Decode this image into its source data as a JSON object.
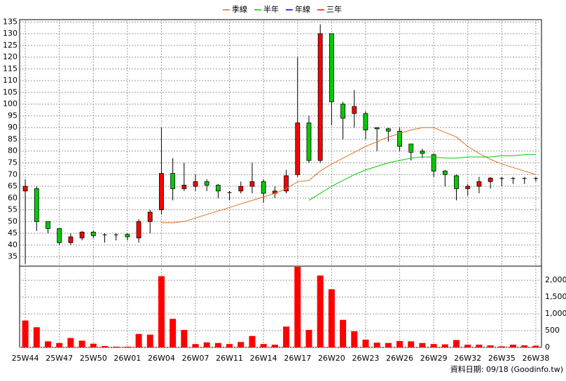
{
  "chart_data": [
    {
      "type": "candlestick",
      "categories": [
        "25W44",
        null,
        null,
        "25W47",
        null,
        null,
        "25W50",
        null,
        null,
        "26W01",
        null,
        null,
        "26W04",
        null,
        null,
        "26W07",
        null,
        null,
        "26W11",
        null,
        null,
        "26W14",
        null,
        null,
        "26W17",
        null,
        null,
        "26W20",
        null,
        null,
        "26W23",
        null,
        null,
        "26W26",
        null,
        null,
        "26W29",
        null,
        null,
        "26W32",
        null,
        null,
        "26W35",
        null,
        null,
        "26W38"
      ],
      "open": [
        63,
        64,
        50,
        47,
        41,
        43,
        45.5,
        44.5,
        44.5,
        44.5,
        43,
        50,
        55,
        70.5,
        64,
        65,
        67,
        65.5,
        62.5,
        63,
        65,
        67,
        62,
        63,
        70,
        92,
        76,
        130,
        100,
        96,
        96,
        90,
        89.5,
        88.5,
        83,
        80,
        78.5,
        71.5,
        69.5,
        64,
        65,
        67,
        68.5,
        68.5,
        68.5,
        68.5
      ],
      "high": [
        68,
        65,
        50,
        47,
        45,
        46,
        46,
        45,
        45,
        45,
        51,
        55,
        90,
        77,
        75,
        70,
        68,
        66,
        63,
        67,
        75,
        68,
        65,
        72,
        120,
        95,
        134,
        130,
        101,
        106,
        97,
        90,
        90,
        90,
        83,
        81,
        79,
        72,
        70,
        66,
        69,
        69,
        69,
        69,
        69,
        69
      ],
      "low": [
        32,
        46,
        45,
        40,
        40,
        42,
        43,
        41,
        42,
        42,
        41,
        45,
        53,
        59,
        63,
        63,
        63,
        60,
        59,
        62,
        62,
        58,
        60,
        62,
        69,
        75,
        75,
        91,
        85,
        90,
        85,
        80,
        84,
        80,
        76,
        77,
        69,
        65,
        59,
        61,
        62,
        64,
        65,
        66,
        66,
        67
      ],
      "close": [
        65,
        50,
        47,
        41,
        43.5,
        45.5,
        44,
        44.5,
        44.5,
        43.5,
        50,
        54,
        70.5,
        64,
        65.5,
        67,
        65.5,
        63,
        62.5,
        65,
        67,
        62,
        63,
        69.5,
        92,
        76,
        130,
        101,
        94,
        99,
        89,
        89.5,
        88.5,
        82,
        79.5,
        79,
        71.5,
        70,
        64,
        65,
        67,
        68.5,
        68.5,
        68.5,
        68.5,
        68.5
      ],
      "up_color": "#ff0000",
      "down_color": "#00cc00",
      "series": [
        {
          "name": "季線",
          "color": "#e07020",
          "values": [
            null,
            null,
            null,
            null,
            null,
            null,
            null,
            null,
            null,
            null,
            null,
            null,
            49.5,
            49.5,
            50,
            51.5,
            53,
            54.5,
            56,
            57.5,
            59,
            60.5,
            62,
            64,
            67,
            67.5,
            71.5,
            74.5,
            77,
            79.5,
            82,
            84,
            86,
            87.5,
            89,
            90,
            90,
            88,
            86,
            82,
            79,
            76.5,
            74.5,
            73,
            71.5,
            70
          ]
        },
        {
          "name": "半年",
          "color": "#00cc00",
          "values": [
            null,
            null,
            null,
            null,
            null,
            null,
            null,
            null,
            null,
            null,
            null,
            null,
            null,
            null,
            null,
            null,
            null,
            null,
            null,
            null,
            null,
            null,
            null,
            null,
            null,
            59,
            62,
            65,
            67.5,
            70,
            72,
            73.5,
            75,
            76,
            77,
            77.5,
            77.5,
            77,
            77,
            77.5,
            77.5,
            77.5,
            78,
            78,
            78.5,
            78.5
          ]
        },
        {
          "name": "年線",
          "color": "#0000ff",
          "values": [
            null,
            null,
            null,
            null,
            null,
            null,
            null,
            null,
            null,
            null,
            null,
            null,
            null,
            null,
            null,
            null,
            null,
            null,
            null,
            null,
            null,
            null,
            null,
            null,
            null,
            null,
            null,
            null,
            null,
            null,
            null,
            null,
            null,
            null,
            null,
            null,
            null,
            null,
            null,
            null,
            null,
            null,
            null,
            null,
            null,
            null
          ]
        },
        {
          "name": "三年",
          "color": "#ff0000",
          "values": [
            null,
            null,
            null,
            null,
            null,
            null,
            null,
            null,
            null,
            null,
            null,
            null,
            null,
            null,
            null,
            null,
            null,
            null,
            null,
            null,
            null,
            null,
            null,
            null,
            null,
            null,
            null,
            null,
            null,
            null,
            null,
            null,
            null,
            null,
            null,
            null,
            null,
            null,
            null,
            null,
            null,
            null,
            null,
            null,
            null,
            null
          ]
        }
      ],
      "ylim": [
        31,
        136
      ],
      "yticks": [
        35,
        40,
        45,
        50,
        55,
        60,
        65,
        70,
        75,
        80,
        85,
        90,
        95,
        100,
        105,
        110,
        115,
        120,
        125,
        130,
        135
      ],
      "grid": true
    },
    {
      "type": "bar",
      "values": [
        800,
        600,
        180,
        130,
        280,
        200,
        110,
        40,
        20,
        20,
        400,
        380,
        2120,
        850,
        520,
        100,
        150,
        130,
        100,
        160,
        340,
        100,
        80,
        620,
        2400,
        520,
        2140,
        1730,
        820,
        480,
        230,
        140,
        130,
        190,
        180,
        130,
        100,
        90,
        220,
        80,
        80,
        60,
        30,
        80,
        60,
        50
      ],
      "color": "#ff0000",
      "ylim": [
        0,
        2420
      ],
      "yticks": [
        0,
        500,
        {
          "value": 1000,
          "label": "1,000"
        },
        {
          "value": 1500,
          "label": "1,500"
        },
        {
          "value": 2000,
          "label": "2,000"
        }
      ],
      "grid": true,
      "note": "資料日期: 09/18  (Goodinfo.tw)"
    }
  ]
}
